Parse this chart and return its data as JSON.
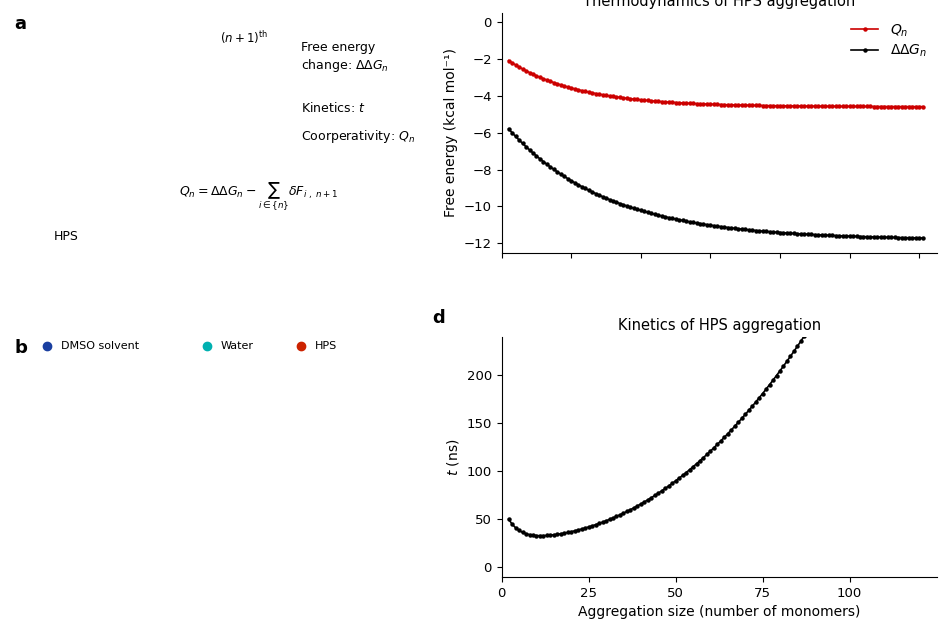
{
  "panel_c": {
    "title": "Thermodynamics of HPS aggregation",
    "ylabel": "Free energy (kcal mol⁻¹)",
    "ylim": [
      -12.5,
      0.5
    ],
    "yticks": [
      0,
      -2,
      -4,
      -6,
      -8,
      -10,
      -12
    ],
    "xlim": [
      0,
      125
    ],
    "Qn_color": "#cc0000",
    "ddG_color": "#000000",
    "legend_Qn": "$Q_n$",
    "legend_ddG": "$\\Delta\\Delta G_n$"
  },
  "panel_d": {
    "title": "Kinetics of HPS aggregation",
    "ylabel": "t (ns)",
    "xlabel": "Aggregation size (number of monomers)",
    "ylim": [
      -10,
      240
    ],
    "yticks": [
      0,
      50,
      100,
      150,
      200
    ],
    "xlim": [
      0,
      125
    ],
    "xticks": [
      0,
      25,
      50,
      75,
      100
    ],
    "color": "#000000"
  },
  "label_fontsize": 10,
  "title_fontsize": 10.5,
  "tick_fontsize": 9.5,
  "panel_label_fontsize": 13
}
